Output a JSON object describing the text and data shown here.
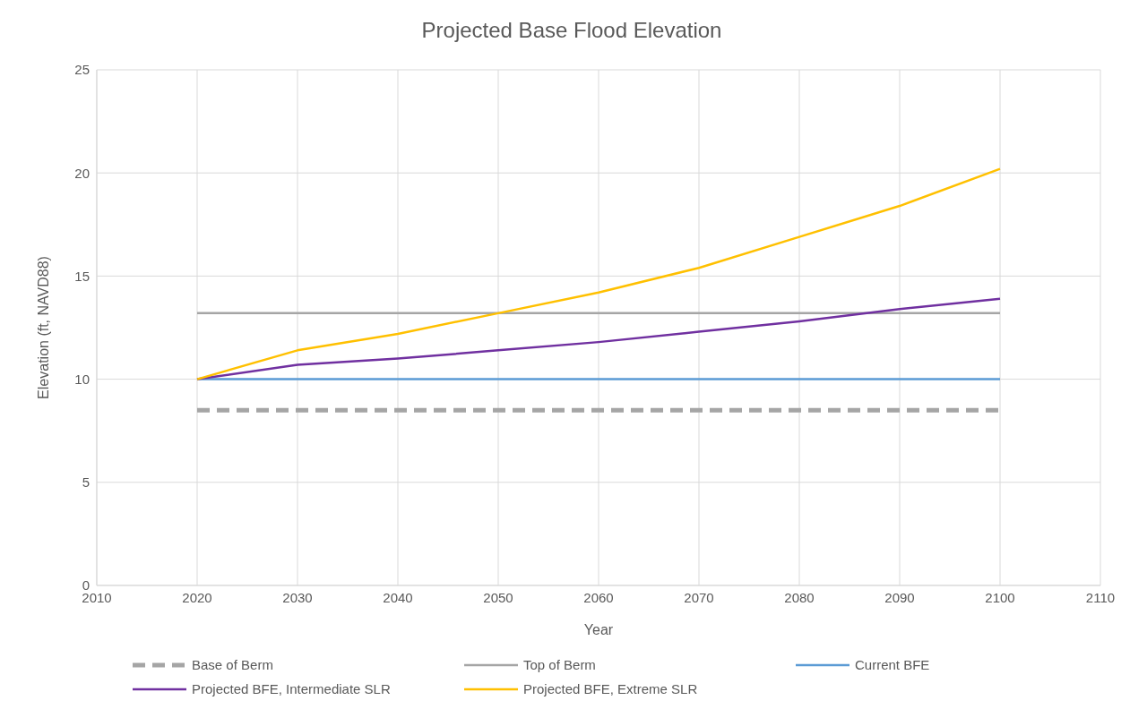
{
  "chart_data": {
    "type": "line",
    "title": "Projected Base Flood Elevation",
    "xlabel": "Year",
    "ylabel": "Elevation (ft, NAVD88)",
    "x": [
      2020,
      2030,
      2040,
      2050,
      2060,
      2070,
      2080,
      2090,
      2100
    ],
    "series": [
      {
        "name": "Base of Berm",
        "color": "#a5a5a5",
        "line_style": "dashed",
        "values": [
          8.5,
          8.5,
          8.5,
          8.5,
          8.5,
          8.5,
          8.5,
          8.5,
          8.5
        ]
      },
      {
        "name": "Top of Berm",
        "color": "#a5a5a5",
        "values": [
          13.2,
          13.2,
          13.2,
          13.2,
          13.2,
          13.2,
          13.2,
          13.2,
          13.2
        ]
      },
      {
        "name": "Current BFE",
        "color": "#5b9bd5",
        "values": [
          10,
          10,
          10,
          10,
          10,
          10,
          10,
          10,
          10
        ]
      },
      {
        "name": "Projected BFE, Intermediate SLR",
        "color": "#7030a0",
        "values": [
          10,
          10.7,
          11.0,
          11.4,
          11.8,
          12.3,
          12.8,
          13.4,
          13.9
        ]
      },
      {
        "name": "Projected BFE, Extreme SLR",
        "color": "#ffc000",
        "values": [
          10,
          11.4,
          12.2,
          13.2,
          14.2,
          15.4,
          16.9,
          18.4,
          20.2
        ]
      }
    ],
    "xlim": [
      2010,
      2110
    ],
    "xticks": [
      2010,
      2020,
      2030,
      2040,
      2050,
      2060,
      2070,
      2080,
      2090,
      2100,
      2110
    ],
    "ylim": [
      0,
      25
    ],
    "yticks": [
      0,
      5,
      10,
      15,
      20,
      25
    ],
    "grid": true,
    "legend": "bottom",
    "line_style": "solid",
    "marker": "none"
  }
}
